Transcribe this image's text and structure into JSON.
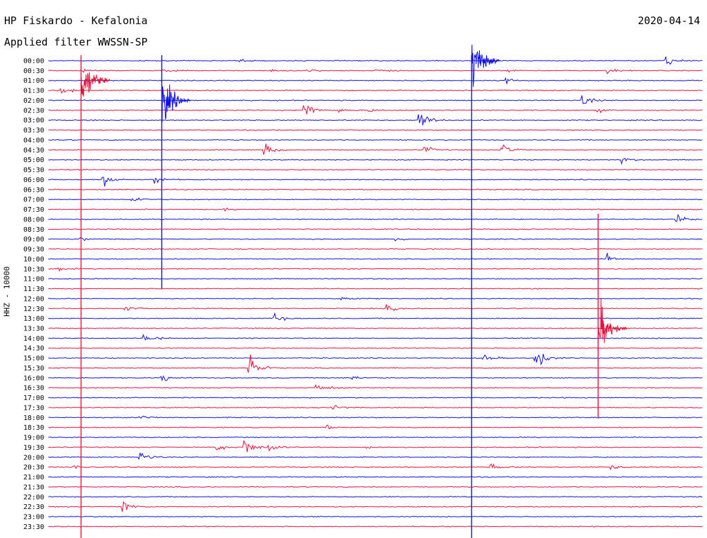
{
  "header": {
    "station": "HP Fiskardo - Kefalonia",
    "filter": "Applied filter WWSSN-SP",
    "date": "2020-04-14"
  },
  "channel_label": "HHZ - 10000",
  "colors": {
    "blue": "#1010e0",
    "red": "#e8103a"
  },
  "chart_data": {
    "type": "line",
    "title": "HP Fiskardo - Kefalonia",
    "subtitle": "Applied filter WWSSN-SP",
    "date": "2020-04-14",
    "ylabel": "HHZ - 10000",
    "xlabel": "",
    "y_tick_labels": [
      "00:00",
      "00:30",
      "01:00",
      "01:30",
      "02:00",
      "02:30",
      "03:00",
      "03:30",
      "04:00",
      "04:30",
      "05:00",
      "05:30",
      "06:00",
      "06:30",
      "07:00",
      "07:30",
      "08:00",
      "08:30",
      "09:00",
      "09:30",
      "10:00",
      "10:30",
      "11:00",
      "11:30",
      "12:00",
      "12:30",
      "13:00",
      "13:30",
      "14:00",
      "14:30",
      "15:00",
      "15:30",
      "16:00",
      "16:30",
      "17:00",
      "17:30",
      "18:00",
      "18:30",
      "19:00",
      "19:30",
      "20:00",
      "20:30",
      "21:00",
      "21:30",
      "22:00",
      "22:30",
      "23:00",
      "23:30"
    ],
    "trace_color_pattern": [
      "blue",
      "red"
    ],
    "trace_minutes": 30,
    "events": [
      {
        "row": 1,
        "minute": 1.6,
        "amp": 0.25
      },
      {
        "row": 1,
        "minute": 5.2,
        "amp": 0.3
      },
      {
        "row": 0,
        "minute": 8.8,
        "amp": 0.3
      },
      {
        "row": 1,
        "minute": 10.2,
        "amp": 0.25
      },
      {
        "row": 1,
        "minute": 11.8,
        "amp": 0.45
      },
      {
        "row": 1,
        "minute": 15.0,
        "amp": 0.35
      },
      {
        "row": 1,
        "minute": 21.0,
        "amp": 0.25
      },
      {
        "row": 1,
        "minute": 25.6,
        "amp": 0.5
      },
      {
        "row": 0,
        "minute": 28.3,
        "amp": 1.1
      },
      {
        "row": 2,
        "minute": 21.0,
        "amp": 0.45
      },
      {
        "row": 3,
        "minute": 0.6,
        "amp": 0.8
      },
      {
        "row": 4,
        "minute": 24.5,
        "amp": 0.9
      },
      {
        "row": 5,
        "minute": 11.7,
        "amp": 2.0
      },
      {
        "row": 5,
        "minute": 13.3,
        "amp": 0.4
      },
      {
        "row": 5,
        "minute": 14.7,
        "amp": 0.3
      },
      {
        "row": 5,
        "minute": 25.2,
        "amp": 0.35
      },
      {
        "row": 6,
        "minute": 17.0,
        "amp": 2.3
      },
      {
        "row": 9,
        "minute": 9.9,
        "amp": 1.2
      },
      {
        "row": 9,
        "minute": 17.2,
        "amp": 0.7
      },
      {
        "row": 9,
        "minute": 20.8,
        "amp": 1.1
      },
      {
        "row": 10,
        "minute": 26.3,
        "amp": 0.5
      },
      {
        "row": 12,
        "minute": 2.5,
        "amp": 1.6
      },
      {
        "row": 12,
        "minute": 4.9,
        "amp": 0.6
      },
      {
        "row": 14,
        "minute": 3.8,
        "amp": 0.8
      },
      {
        "row": 15,
        "minute": 8.0,
        "amp": 0.3
      },
      {
        "row": 16,
        "minute": 28.8,
        "amp": 0.7
      },
      {
        "row": 18,
        "minute": 1.5,
        "amp": 0.3
      },
      {
        "row": 18,
        "minute": 15.9,
        "amp": 0.3
      },
      {
        "row": 20,
        "minute": 25.6,
        "amp": 0.9
      },
      {
        "row": 21,
        "minute": 0.5,
        "amp": 0.4
      },
      {
        "row": 24,
        "minute": 13.4,
        "amp": 0.7
      },
      {
        "row": 25,
        "minute": 3.5,
        "amp": 0.5
      },
      {
        "row": 25,
        "minute": 15.5,
        "amp": 0.6
      },
      {
        "row": 26,
        "minute": 10.3,
        "amp": 0.8
      },
      {
        "row": 28,
        "minute": 4.4,
        "amp": 1.1
      },
      {
        "row": 30,
        "minute": 19.9,
        "amp": 0.8
      },
      {
        "row": 30,
        "minute": 22.3,
        "amp": 2.6
      },
      {
        "row": 31,
        "minute": 9.2,
        "amp": 2.6
      },
      {
        "row": 32,
        "minute": 5.2,
        "amp": 0.9
      },
      {
        "row": 32,
        "minute": 13.9,
        "amp": 0.5
      },
      {
        "row": 33,
        "minute": 12.3,
        "amp": 1.0
      },
      {
        "row": 35,
        "minute": 13.0,
        "amp": 0.6
      },
      {
        "row": 36,
        "minute": 4.2,
        "amp": 0.6
      },
      {
        "row": 37,
        "minute": 12.8,
        "amp": 0.4
      },
      {
        "row": 39,
        "minute": 7.7,
        "amp": 0.6
      },
      {
        "row": 39,
        "minute": 9.0,
        "amp": 1.6
      },
      {
        "row": 39,
        "minute": 10.1,
        "amp": 0.8
      },
      {
        "row": 39,
        "minute": 14.6,
        "amp": 0.4
      },
      {
        "row": 40,
        "minute": 4.2,
        "amp": 1.2
      },
      {
        "row": 41,
        "minute": 1.2,
        "amp": 0.4
      },
      {
        "row": 41,
        "minute": 20.3,
        "amp": 0.5
      },
      {
        "row": 41,
        "minute": 25.8,
        "amp": 0.4
      },
      {
        "row": 45,
        "minute": 3.4,
        "amp": 1.2
      }
    ],
    "large_quakes": [
      {
        "start_row": 0,
        "minute": 1.5,
        "color": "red",
        "coda_rows": 24,
        "peak_row": 2
      },
      {
        "start_row": 0,
        "minute": 5.2,
        "color": "blue",
        "coda_rows": 23,
        "peak_row": 4
      },
      {
        "start_row": 0,
        "minute": 19.4,
        "color": "blue",
        "coda_rows": 24,
        "peak_row": 0
      },
      {
        "start_row": 16,
        "minute": 25.2,
        "color": "red",
        "coda_rows": 20,
        "peak_row": 27
      }
    ]
  }
}
